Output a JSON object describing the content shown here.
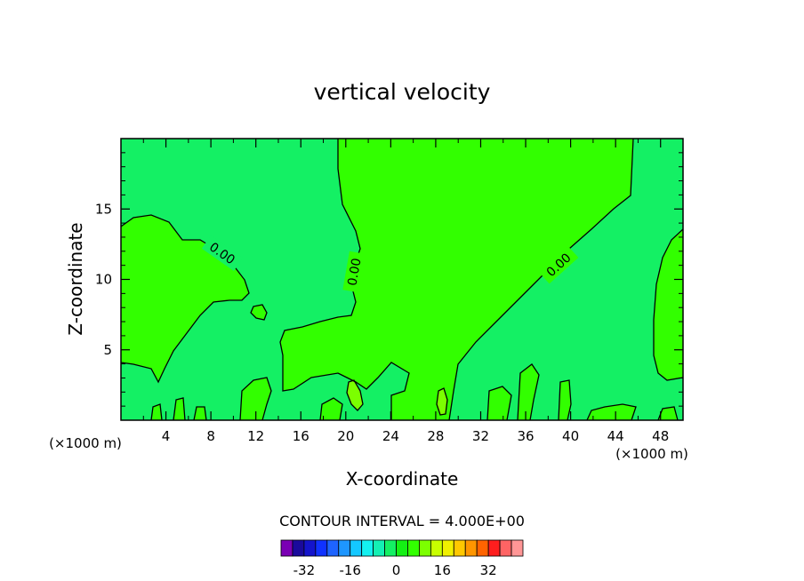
{
  "chart_data": {
    "type": "contour",
    "title": "vertical velocity",
    "xlabel": "X-coordinate",
    "ylabel": "Z-coordinate",
    "x_unit_left": "(×1000 m)",
    "x_unit_right": "(×1000 m)",
    "xlim": [
      0,
      50
    ],
    "ylim": [
      0,
      20
    ],
    "xticks": [
      4,
      8,
      12,
      16,
      20,
      24,
      28,
      32,
      36,
      40,
      44,
      48
    ],
    "yticks": [
      5,
      10,
      15
    ],
    "contour_interval_text": "CONTOUR INTERVAL = 4.000E+00",
    "contour_labels": [
      "0.00",
      "0.00",
      "0.00"
    ],
    "colorbar": {
      "colors": [
        "#7a00b4",
        "#1a0a9c",
        "#1414cc",
        "#1032ff",
        "#1e64ff",
        "#1e96ff",
        "#14c8ff",
        "#14f0f0",
        "#14f0b4",
        "#14f064",
        "#14f014",
        "#32ff00",
        "#7cff00",
        "#c8ff00",
        "#f0f000",
        "#ffc800",
        "#ff9600",
        "#ff6400",
        "#ff1e1e",
        "#ff6464",
        "#ff9696"
      ],
      "tick_labels": [
        "-32",
        "-16",
        "0",
        "16",
        "32"
      ],
      "tick_values": [
        -32,
        -16,
        0,
        16,
        32
      ]
    },
    "field_colors": {
      "negative": "#14f064",
      "positive": "#32ff00",
      "weak_positive": "#7cff00"
    }
  }
}
